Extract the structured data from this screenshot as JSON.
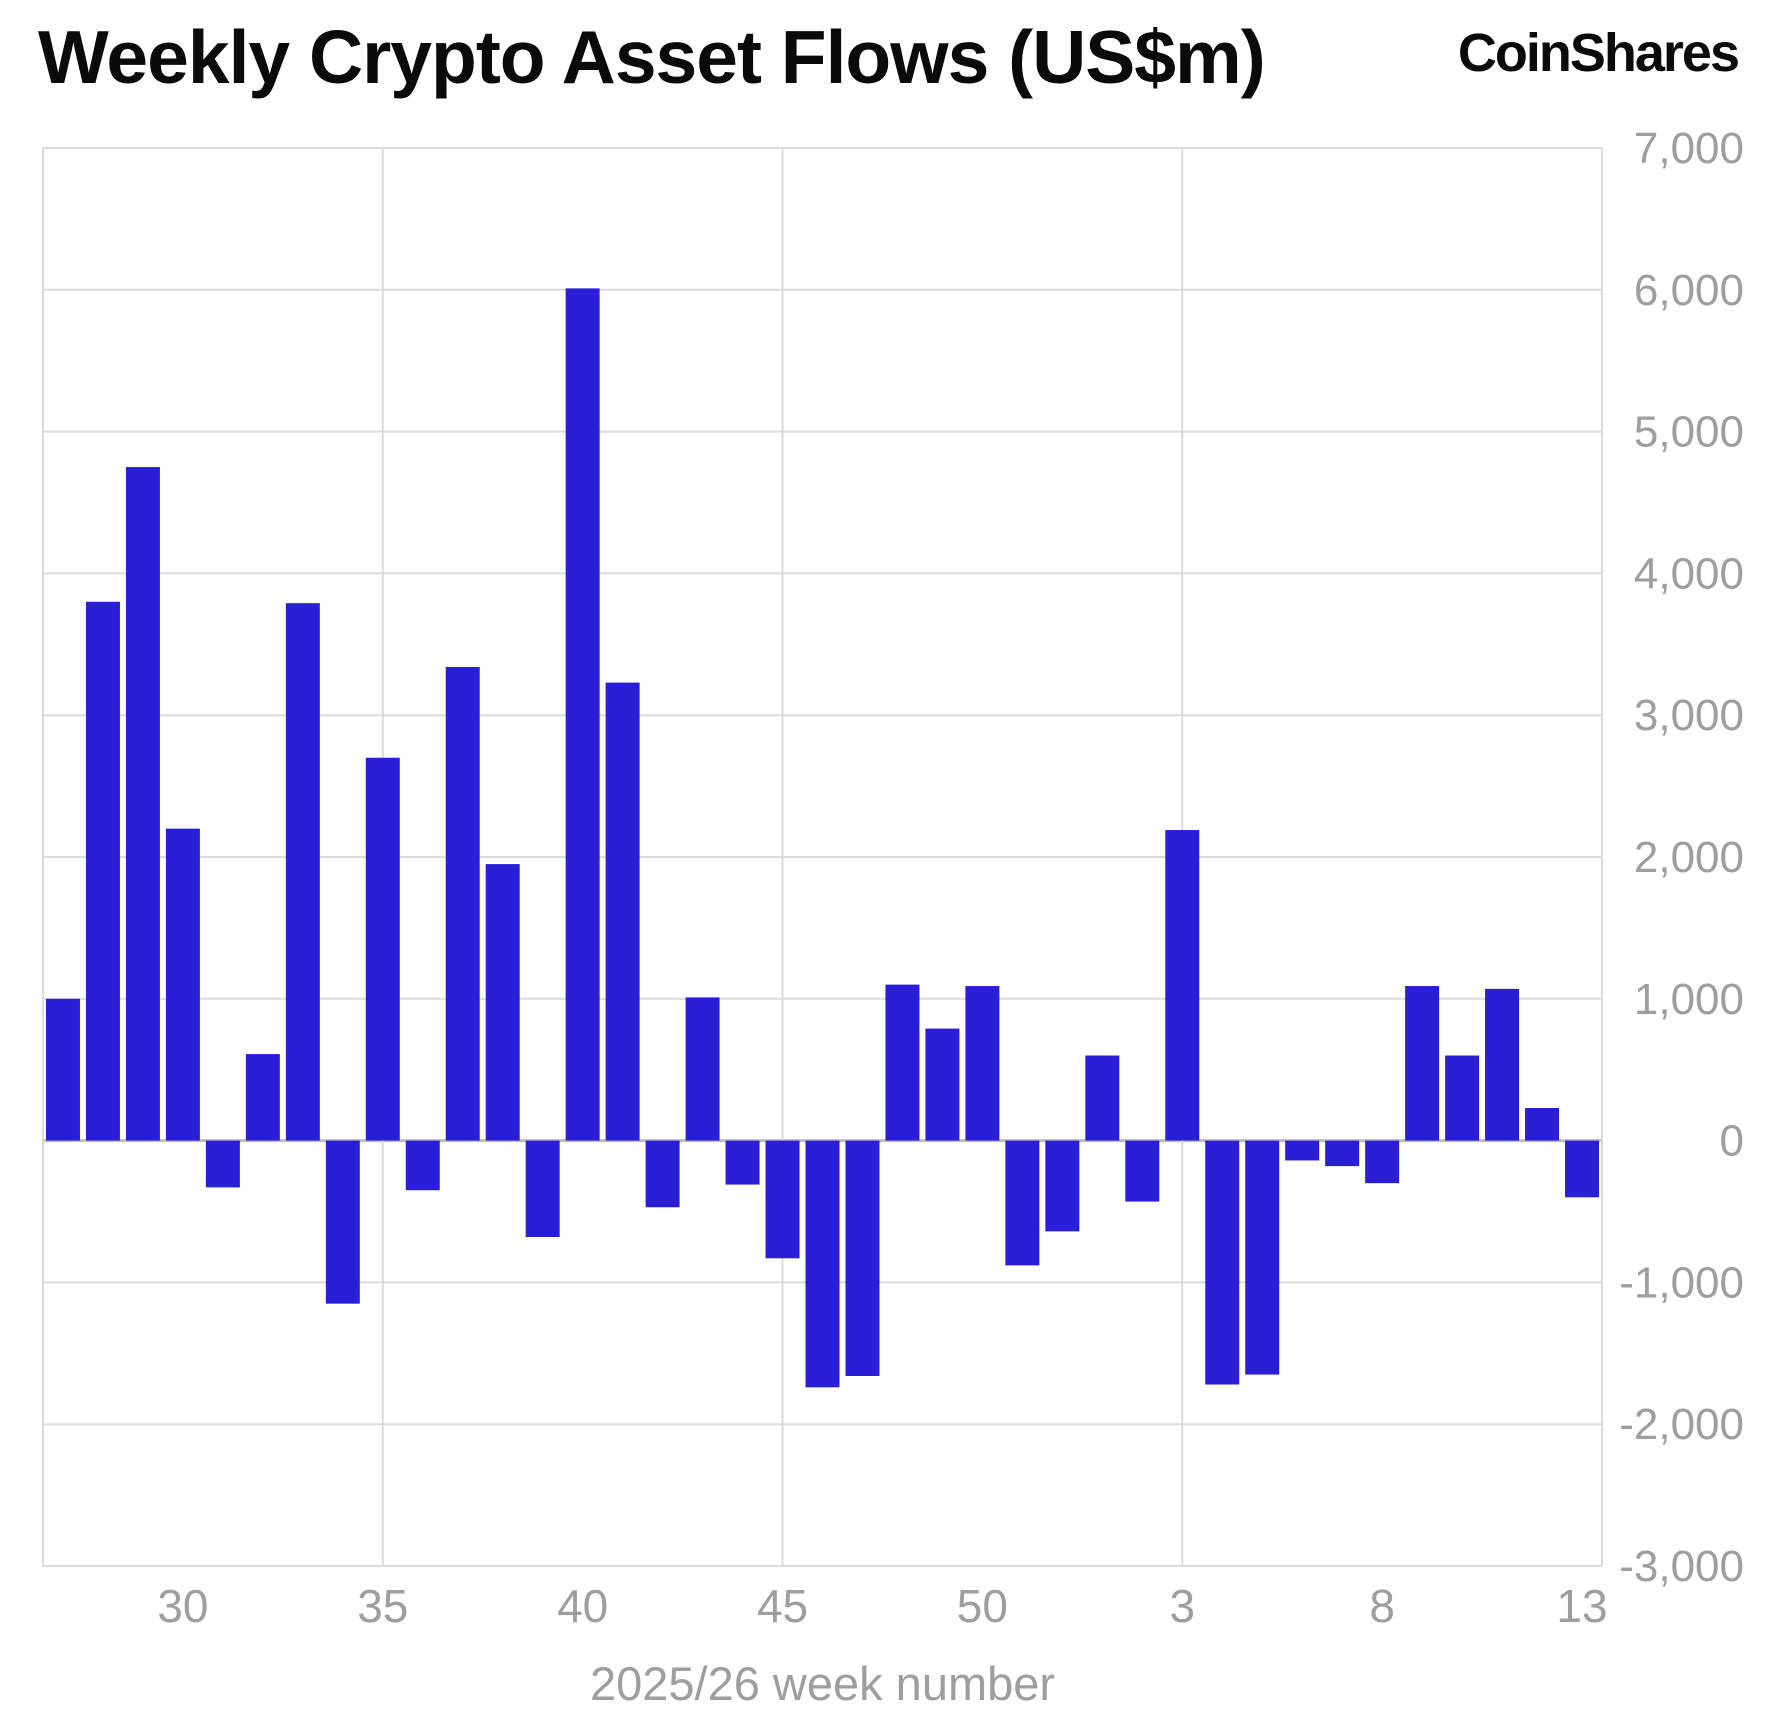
{
  "header": {
    "logo_text": "CoinShares"
  },
  "chart_data": {
    "type": "bar",
    "title": "Weekly Crypto Asset Flows (US$m)",
    "xlabel": "2025/26 week number",
    "categories": [
      "27",
      "28",
      "29",
      "30",
      "31",
      "32",
      "33",
      "34",
      "35",
      "36",
      "37",
      "38",
      "39",
      "40",
      "41",
      "42",
      "43",
      "44",
      "45",
      "46",
      "47",
      "48",
      "49",
      "50",
      "51",
      "52",
      "1",
      "2",
      "3",
      "4",
      "5",
      "6",
      "7",
      "8",
      "9",
      "10",
      "11",
      "12",
      "13"
    ],
    "values": [
      1000,
      3800,
      4750,
      2200,
      -330,
      610,
      3790,
      -1150,
      2700,
      -350,
      3340,
      1950,
      -680,
      6010,
      3230,
      -470,
      1010,
      -310,
      -830,
      -1740,
      -1660,
      1100,
      790,
      1090,
      -880,
      -640,
      600,
      -430,
      2190,
      -1720,
      -1650,
      -140,
      -180,
      -300,
      1090,
      600,
      1070,
      230,
      -400
    ],
    "x_tick_weeks": [
      30,
      35,
      40,
      45,
      50,
      3,
      8,
      13
    ],
    "x_tick_labels": [
      "30",
      "35",
      "40",
      "45",
      "50",
      "3",
      "8",
      "13"
    ],
    "y_ticks": [
      7000,
      6000,
      5000,
      4000,
      3000,
      2000,
      1000,
      0,
      -1000,
      -2000,
      -3000
    ],
    "ylim": [
      -3000,
      7000
    ],
    "grid_vertical_weeks": [
      35,
      45,
      3
    ],
    "grid": true,
    "legend": false,
    "bar_color": "#2A1ED6",
    "grid_color": "#DBDBDB",
    "zero_line_color": "#BDBDBD",
    "axis_text_color": "#9E9E9E"
  }
}
